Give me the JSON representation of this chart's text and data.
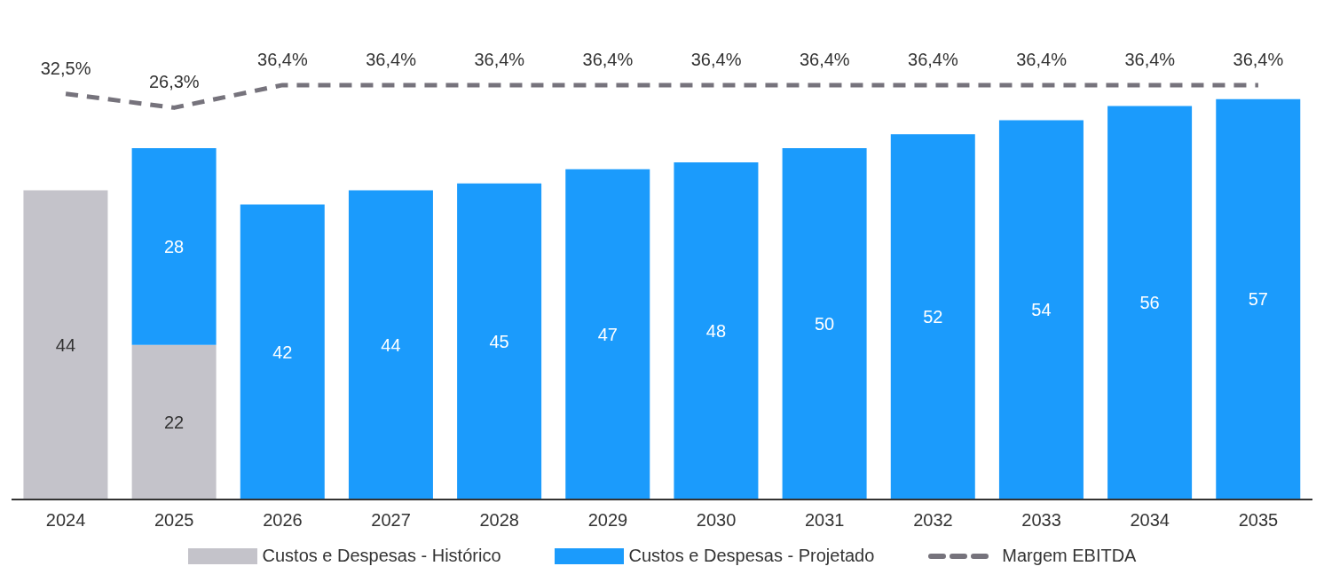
{
  "chart_data": {
    "type": "bar",
    "stacked": true,
    "categories": [
      "2024",
      "2025",
      "2026",
      "2027",
      "2028",
      "2029",
      "2030",
      "2031",
      "2032",
      "2033",
      "2034",
      "2035"
    ],
    "series": [
      {
        "name": "Custos e Despesas - Histórico",
        "color": "#c4c3ca",
        "values": [
          44,
          22,
          null,
          null,
          null,
          null,
          null,
          null,
          null,
          null,
          null,
          null
        ]
      },
      {
        "name": "Custos e Despesas - Projetado",
        "color": "#1b9bfc",
        "values": [
          null,
          28,
          42,
          44,
          45,
          47,
          48,
          50,
          52,
          54,
          56,
          57
        ]
      },
      {
        "name": "Margem EBITDA",
        "type": "line",
        "axis": "y2",
        "color": "#76737c",
        "line_style": "dashed",
        "marker": "none",
        "values": [
          32.5,
          26.3,
          36.4,
          36.4,
          36.4,
          36.4,
          36.4,
          36.4,
          36.4,
          36.4,
          36.4,
          36.4
        ],
        "value_labels": [
          "32,5%",
          "26,3%",
          "36,4%",
          "36,4%",
          "36,4%",
          "36,4%",
          "36,4%",
          "36,4%",
          "36,4%",
          "36,4%",
          "36,4%",
          "36,4%"
        ]
      }
    ],
    "data_labels": true,
    "grid": false,
    "legend": "bottom",
    "tick_labels": "x"
  }
}
